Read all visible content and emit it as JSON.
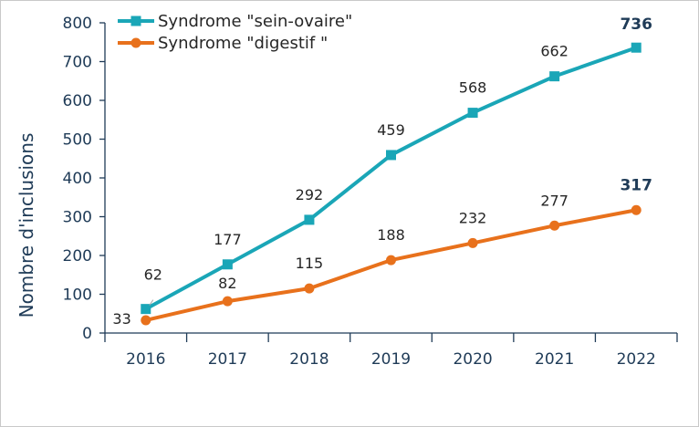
{
  "chart_data": {
    "type": "line",
    "title": "",
    "xlabel": "",
    "ylabel": "Nombre d'inclusions",
    "x": [
      "2016",
      "2017",
      "2018",
      "2019",
      "2020",
      "2021",
      "2022"
    ],
    "ylim": [
      0,
      800
    ],
    "yticks": [
      "0",
      "100",
      "200",
      "300",
      "400",
      "500",
      "600",
      "700",
      "800"
    ],
    "grid": false,
    "legend_position": "top-left",
    "series": [
      {
        "name": "Syndrome \"sein-ovaire\"",
        "color": "#1aa6b7",
        "marker": "square",
        "values": [
          62,
          177,
          292,
          459,
          568,
          662,
          736
        ],
        "labels": [
          "62",
          "177",
          "292",
          "459",
          "568",
          "662",
          "736"
        ]
      },
      {
        "name": "Syndrome \"digestif \"",
        "color": "#e8711c",
        "marker": "circle",
        "values": [
          33,
          82,
          115,
          188,
          232,
          277,
          317
        ],
        "labels": [
          "33",
          "82",
          "115",
          "188",
          "232",
          "277",
          "317"
        ]
      }
    ]
  }
}
